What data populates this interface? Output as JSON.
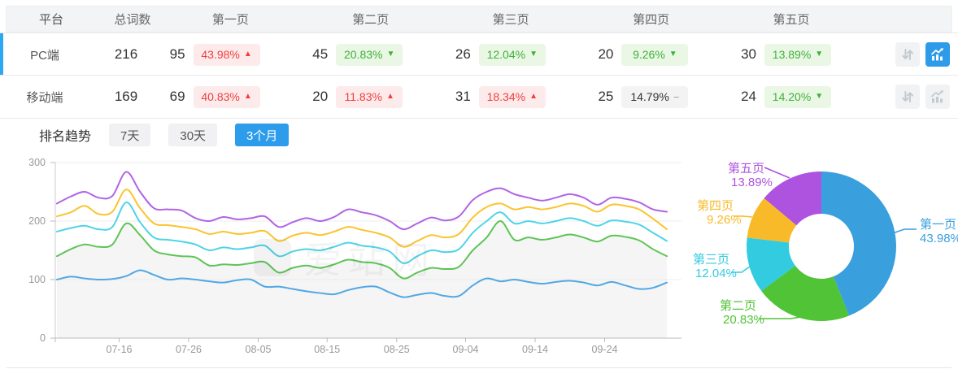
{
  "table": {
    "columns": [
      "平台",
      "总词数",
      "第一页",
      "第二页",
      "第三页",
      "第四页",
      "第五页"
    ],
    "rows": [
      {
        "platform": "PC端",
        "total": "216",
        "selected": true,
        "chart_active": true,
        "pages": [
          {
            "count": "95",
            "pct": "43.98%",
            "trend": "up"
          },
          {
            "count": "45",
            "pct": "20.83%",
            "trend": "down"
          },
          {
            "count": "26",
            "pct": "12.04%",
            "trend": "down"
          },
          {
            "count": "20",
            "pct": "9.26%",
            "trend": "down"
          },
          {
            "count": "30",
            "pct": "13.89%",
            "trend": "down"
          }
        ]
      },
      {
        "platform": "移动端",
        "total": "169",
        "selected": false,
        "chart_active": false,
        "pages": [
          {
            "count": "69",
            "pct": "40.83%",
            "trend": "up"
          },
          {
            "count": "20",
            "pct": "11.83%",
            "trend": "up"
          },
          {
            "count": "31",
            "pct": "18.34%",
            "trend": "up"
          },
          {
            "count": "25",
            "pct": "14.79%",
            "trend": "flat"
          },
          {
            "count": "24",
            "pct": "14.20%",
            "trend": "down"
          }
        ]
      }
    ]
  },
  "glyphs": {
    "up": "▲",
    "down": "▼",
    "flat": "−"
  },
  "trend_section": {
    "title": "排名趋势",
    "tabs": [
      {
        "label": "7天",
        "active": false
      },
      {
        "label": "30天",
        "active": false
      },
      {
        "label": "3个月",
        "active": true
      }
    ],
    "watermark": "爱站网"
  },
  "colors": {
    "accent_blue": "#2BA8F2",
    "tab_active": "#2D9CEB",
    "icon_btn_active": "#2E9BE8",
    "up_red": "#F03E3E",
    "up_bg": "#FDEBEB",
    "down_green": "#3FB13A",
    "down_bg": "#EAF7E5",
    "flat_bg": "#F3F3F4",
    "header_bg": "#F3F4F6"
  },
  "chart_data": [
    {
      "type": "line",
      "title": "排名趋势 3个月",
      "x_tick_labels": [
        "07-16",
        "07-26",
        "08-05",
        "08-15",
        "08-25",
        "09-04",
        "09-14",
        "09-24"
      ],
      "x_tick_positions": [
        0.102,
        0.216,
        0.33,
        0.443,
        0.557,
        0.67,
        0.784,
        0.898
      ],
      "ylim": [
        0,
        300
      ],
      "y_ticks": [
        0,
        100,
        200,
        300
      ],
      "grid": true,
      "series": [
        {
          "name": "第一页",
          "color": "#52A7E4",
          "values": [
            100,
            105,
            102,
            100,
            101,
            106,
            116,
            108,
            100,
            102,
            100,
            97,
            95,
            99,
            100,
            88,
            88,
            84,
            80,
            77,
            75,
            82,
            87,
            88,
            78,
            70,
            74,
            77,
            72,
            72,
            90,
            102,
            97,
            100,
            96,
            93,
            96,
            98,
            95,
            90,
            96,
            90,
            84,
            86,
            95
          ]
        },
        {
          "name": "第二页",
          "color": "#5EC456",
          "fill": "#f5f5f5",
          "values": [
            140,
            152,
            160,
            156,
            160,
            196,
            176,
            150,
            143,
            140,
            138,
            124,
            126,
            125,
            128,
            130,
            112,
            120,
            124,
            120,
            126,
            134,
            130,
            128,
            120,
            102,
            112,
            120,
            118,
            122,
            150,
            172,
            200,
            168,
            172,
            168,
            172,
            177,
            172,
            165,
            175,
            173,
            167,
            152,
            140
          ]
        },
        {
          "name": "第三页",
          "color": "#4ED4E6",
          "values": [
            182,
            188,
            192,
            186,
            190,
            232,
            198,
            172,
            168,
            165,
            160,
            150,
            155,
            152,
            155,
            158,
            140,
            148,
            152,
            150,
            156,
            163,
            158,
            155,
            148,
            128,
            140,
            150,
            147,
            152,
            180,
            200,
            215,
            196,
            200,
            196,
            200,
            205,
            200,
            192,
            201,
            199,
            194,
            180,
            166
          ]
        },
        {
          "name": "第四页",
          "color": "#FAC42E",
          "values": [
            208,
            215,
            226,
            212,
            216,
            254,
            222,
            196,
            193,
            190,
            186,
            178,
            182,
            178,
            180,
            183,
            166,
            175,
            180,
            176,
            182,
            190,
            185,
            180,
            172,
            156,
            166,
            176,
            172,
            178,
            206,
            224,
            230,
            220,
            224,
            220,
            224,
            230,
            226,
            216,
            228,
            226,
            220,
            204,
            186
          ]
        },
        {
          "name": "第五页",
          "color": "#B164E3",
          "values": [
            230,
            242,
            250,
            240,
            243,
            284,
            250,
            222,
            220,
            218,
            205,
            200,
            207,
            203,
            205,
            208,
            190,
            198,
            205,
            200,
            207,
            220,
            215,
            210,
            200,
            186,
            196,
            206,
            201,
            208,
            236,
            250,
            256,
            246,
            240,
            235,
            240,
            246,
            240,
            228,
            240,
            238,
            232,
            220,
            216
          ]
        }
      ]
    },
    {
      "type": "pie",
      "donut": true,
      "center": [
        165,
        118
      ],
      "radius": [
        40,
        92
      ],
      "slices": [
        {
          "label": "第一页",
          "pct": 43.98,
          "color": "#3A9FDD",
          "anchor": "start",
          "name_xy": [
            286,
            96
          ],
          "pct_xy": [
            286,
            113
          ],
          "line": [
            [
              250,
              103
            ],
            [
              267,
              97
            ],
            [
              282,
              97
            ]
          ]
        },
        {
          "label": "第二页",
          "pct": 20.83,
          "color": "#50C337",
          "anchor": "start",
          "name_xy": [
            40,
            196
          ],
          "pct_xy": [
            44,
            213
          ],
          "line": [
            [
              88,
              207
            ],
            [
              127,
              207
            ],
            [
              140,
              205
            ]
          ]
        },
        {
          "label": "第三页",
          "pct": 12.04,
          "color": "#33CBDF",
          "anchor": "start",
          "name_xy": [
            7,
            139
          ],
          "pct_xy": [
            10,
            156
          ],
          "line": [
            [
              54,
              150
            ],
            [
              67,
              150
            ],
            [
              77,
              143
            ]
          ]
        },
        {
          "label": "第四页",
          "pct": 9.26,
          "color": "#F9BA29",
          "anchor": "start",
          "name_xy": [
            12,
            73
          ],
          "pct_xy": [
            24,
            90
          ],
          "line": [
            [
              57,
              81
            ],
            [
              69,
              81
            ],
            [
              80,
              82
            ]
          ]
        },
        {
          "label": "第五页",
          "pct": 13.89,
          "color": "#AE53DF",
          "anchor": "start",
          "name_xy": [
            50,
            27
          ],
          "pct_xy": [
            54,
            44
          ],
          "line": [
            [
              95,
              21
            ],
            [
              126,
              34
            ]
          ]
        }
      ]
    }
  ]
}
